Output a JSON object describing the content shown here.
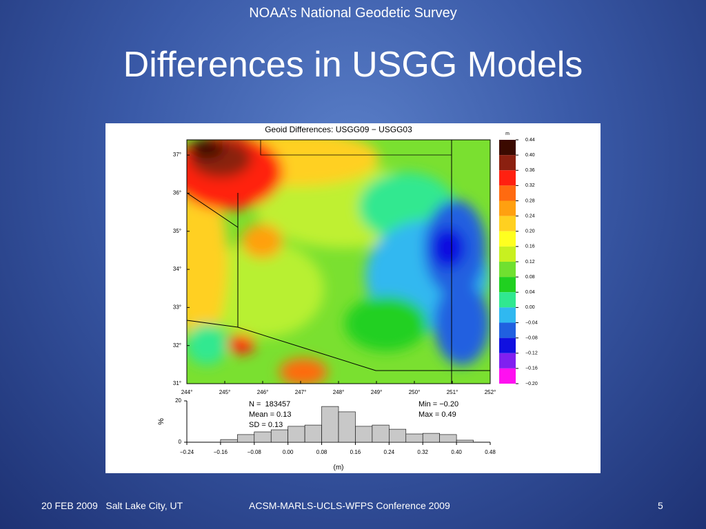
{
  "header": "NOAA’s National Geodetic Survey",
  "title": "Differences in USGG Models",
  "figure": {
    "map": {
      "title": "Geoid Differences: USGG09 − USGG03",
      "xlim": [
        244,
        252
      ],
      "ylim": [
        31,
        37.4
      ],
      "xticks": [
        {
          "value": 244,
          "label": "244°"
        },
        {
          "value": 245,
          "label": "245°"
        },
        {
          "value": 246,
          "label": "246°"
        },
        {
          "value": 247,
          "label": "247°"
        },
        {
          "value": 248,
          "label": "248°"
        },
        {
          "value": 249,
          "label": "249°"
        },
        {
          "value": 250,
          "label": "250°"
        },
        {
          "value": 251,
          "label": "251°"
        },
        {
          "value": 252,
          "label": "252°"
        }
      ],
      "yticks": [
        {
          "value": 31,
          "label": "31°"
        },
        {
          "value": 32,
          "label": "32°"
        },
        {
          "value": 33,
          "label": "33°"
        },
        {
          "value": 34,
          "label": "34°"
        },
        {
          "value": 35,
          "label": "35°"
        },
        {
          "value": 36,
          "label": "36°"
        },
        {
          "value": 37,
          "label": "37°"
        }
      ]
    },
    "colorbar": {
      "unit": "m",
      "ylim": [
        -0.2,
        0.44
      ],
      "ticks": [
        {
          "value": 0.44,
          "label": "0.44"
        },
        {
          "value": 0.4,
          "label": "0.40"
        },
        {
          "value": 0.36,
          "label": "0.36"
        },
        {
          "value": 0.32,
          "label": "0.32"
        },
        {
          "value": 0.28,
          "label": "0.28"
        },
        {
          "value": 0.24,
          "label": "0.24"
        },
        {
          "value": 0.2,
          "label": "0.20"
        },
        {
          "value": 0.16,
          "label": "0.16"
        },
        {
          "value": 0.12,
          "label": "0.12"
        },
        {
          "value": 0.08,
          "label": "0.08"
        },
        {
          "value": 0.04,
          "label": "0.04"
        },
        {
          "value": 0,
          "label": "0.00"
        },
        {
          "value": -0.04,
          "label": "−0.04"
        },
        {
          "value": -0.08,
          "label": "−0.08"
        },
        {
          "value": -0.12,
          "label": "−0.12"
        },
        {
          "value": -0.16,
          "label": "−0.16"
        },
        {
          "value": -0.2,
          "label": "−0.20"
        }
      ],
      "colors": [
        "#3b0a00",
        "#8b2010",
        "#ff2010",
        "#ff6a10",
        "#ffa010",
        "#ffd020",
        "#ffff20",
        "#c8f020",
        "#70e030",
        "#20d020",
        "#30e890",
        "#30b8f0",
        "#2060e0",
        "#1010e0",
        "#8020f0",
        "#ff10f0"
      ]
    },
    "histogram": {
      "type": "bar",
      "ylabel": "%",
      "xlabel": "(m)",
      "color": "#c8c8c8",
      "bins": [
        -0.16,
        -0.12,
        -0.08,
        -0.04,
        0,
        0.04,
        0.08,
        0.12,
        0.16,
        0.2,
        0.24,
        0.28,
        0.32,
        0.36,
        0.4,
        0.44
      ],
      "values": [
        1.3,
        3.7,
        5,
        6,
        7.7,
        8.3,
        17.3,
        14.7,
        7.7,
        8.3,
        6.3,
        4,
        4.3,
        3.7,
        1
      ],
      "xlim": [
        -0.24,
        0.48
      ],
      "ylim": [
        0,
        20
      ],
      "yticks": [
        0,
        20
      ],
      "xticks": [
        {
          "value": -0.24,
          "label": "−0.24"
        },
        {
          "value": -0.16,
          "label": "−0.16"
        },
        {
          "value": -0.08,
          "label": "−0.08"
        },
        {
          "value": 0,
          "label": "0.00"
        },
        {
          "value": 0.08,
          "label": "0.08"
        },
        {
          "value": 0.16,
          "label": "0.16"
        },
        {
          "value": 0.24,
          "label": "0.24"
        },
        {
          "value": 0.32,
          "label": "0.32"
        },
        {
          "value": 0.4,
          "label": "0.40"
        },
        {
          "value": 0.48,
          "label": "0.48"
        }
      ],
      "stats": [
        "N =  183457",
        "Mean = 0.13",
        "SD = 0.13",
        "Min = −0.20",
        "Max = 0.49"
      ]
    }
  },
  "footer": {
    "date_place": "20 FEB 2009   Salt Lake City, UT",
    "conference": "ACSM-MARLS-UCLS-WFPS Conference 2009",
    "page": "5"
  }
}
